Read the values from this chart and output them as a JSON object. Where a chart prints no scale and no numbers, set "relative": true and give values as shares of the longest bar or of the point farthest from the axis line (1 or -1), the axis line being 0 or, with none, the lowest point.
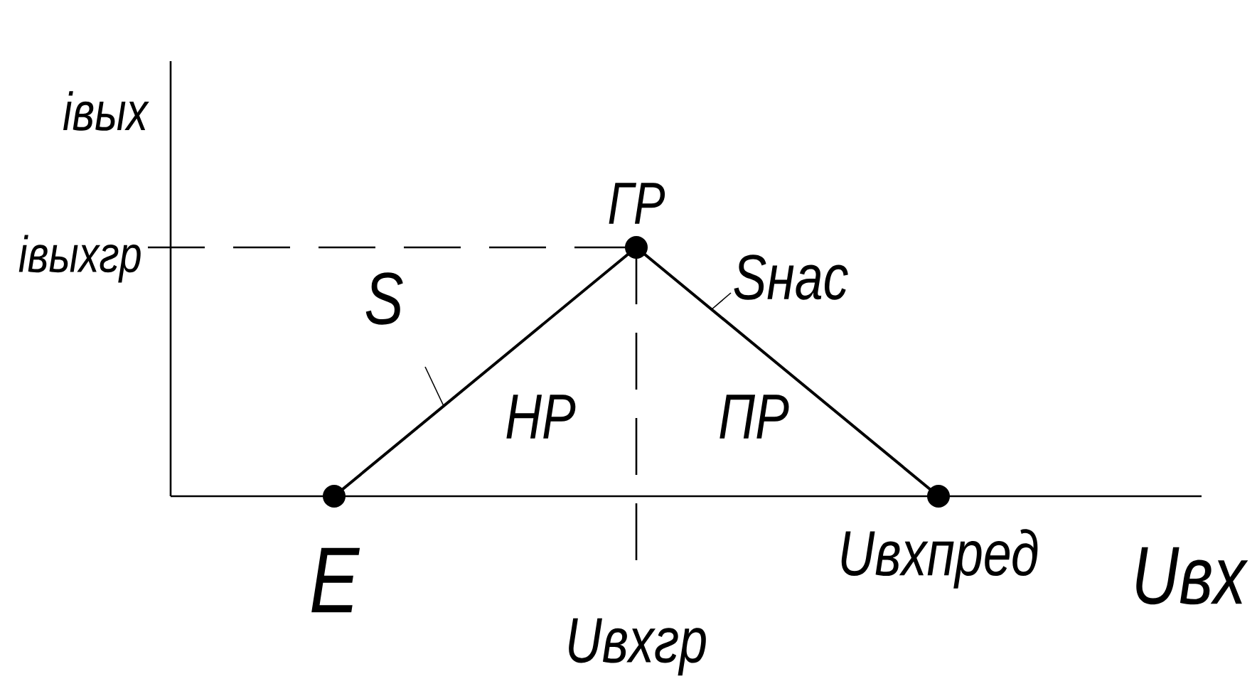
{
  "chart_data": {
    "type": "line",
    "xlabel": "Uвх",
    "ylabel": "iвых",
    "categories": [
      "E",
      "Uвхгр",
      "Uвхпред"
    ],
    "values": [
      0,
      1,
      0
    ],
    "relative": true,
    "color": "#000000",
    "marker": "circle",
    "line_style": "solid",
    "ref_lines": [
      {
        "axis": "y",
        "value": 1,
        "label": "iвыхгр",
        "line_style": "dashed"
      },
      {
        "axis": "x",
        "value": "Uвхгр",
        "line_style": "dashed"
      }
    ],
    "annotations": [
      {
        "text": "ГР",
        "x": "Uвхгр",
        "y": 1
      },
      "S",
      "Sнас",
      "НР",
      "ПР"
    ]
  }
}
